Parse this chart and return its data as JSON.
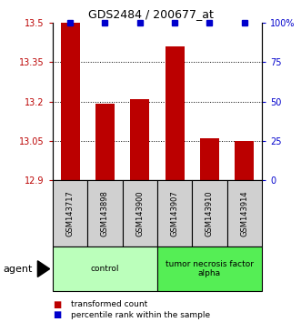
{
  "title": "GDS2484 / 200677_at",
  "samples": [
    "GSM143717",
    "GSM143898",
    "GSM143900",
    "GSM143907",
    "GSM143910",
    "GSM143914"
  ],
  "red_values": [
    13.5,
    13.19,
    13.21,
    13.41,
    13.06,
    13.05
  ],
  "blue_percentiles": [
    100,
    100,
    100,
    100,
    100,
    100
  ],
  "ylim_left": [
    12.9,
    13.5
  ],
  "yticks_left": [
    12.9,
    13.05,
    13.2,
    13.35,
    13.5
  ],
  "ytick_labels_left": [
    "12.9",
    "13.05",
    "13.2",
    "13.35",
    "13.5"
  ],
  "ylim_right": [
    0,
    100
  ],
  "yticks_right": [
    0,
    25,
    50,
    75,
    100
  ],
  "ytick_labels_right": [
    "0",
    "25",
    "50",
    "75",
    "100%"
  ],
  "groups": [
    {
      "label": "control",
      "start": 0,
      "end": 3,
      "color": "#bbffbb"
    },
    {
      "label": "tumor necrosis factor\nalpha",
      "start": 3,
      "end": 6,
      "color": "#55ee55"
    }
  ],
  "agent_label": "agent",
  "legend_red": "transformed count",
  "legend_blue": "percentile rank within the sample",
  "bar_color": "#bb0000",
  "blue_color": "#0000cc",
  "sample_box_color": "#d0d0d0",
  "bar_width": 0.55
}
